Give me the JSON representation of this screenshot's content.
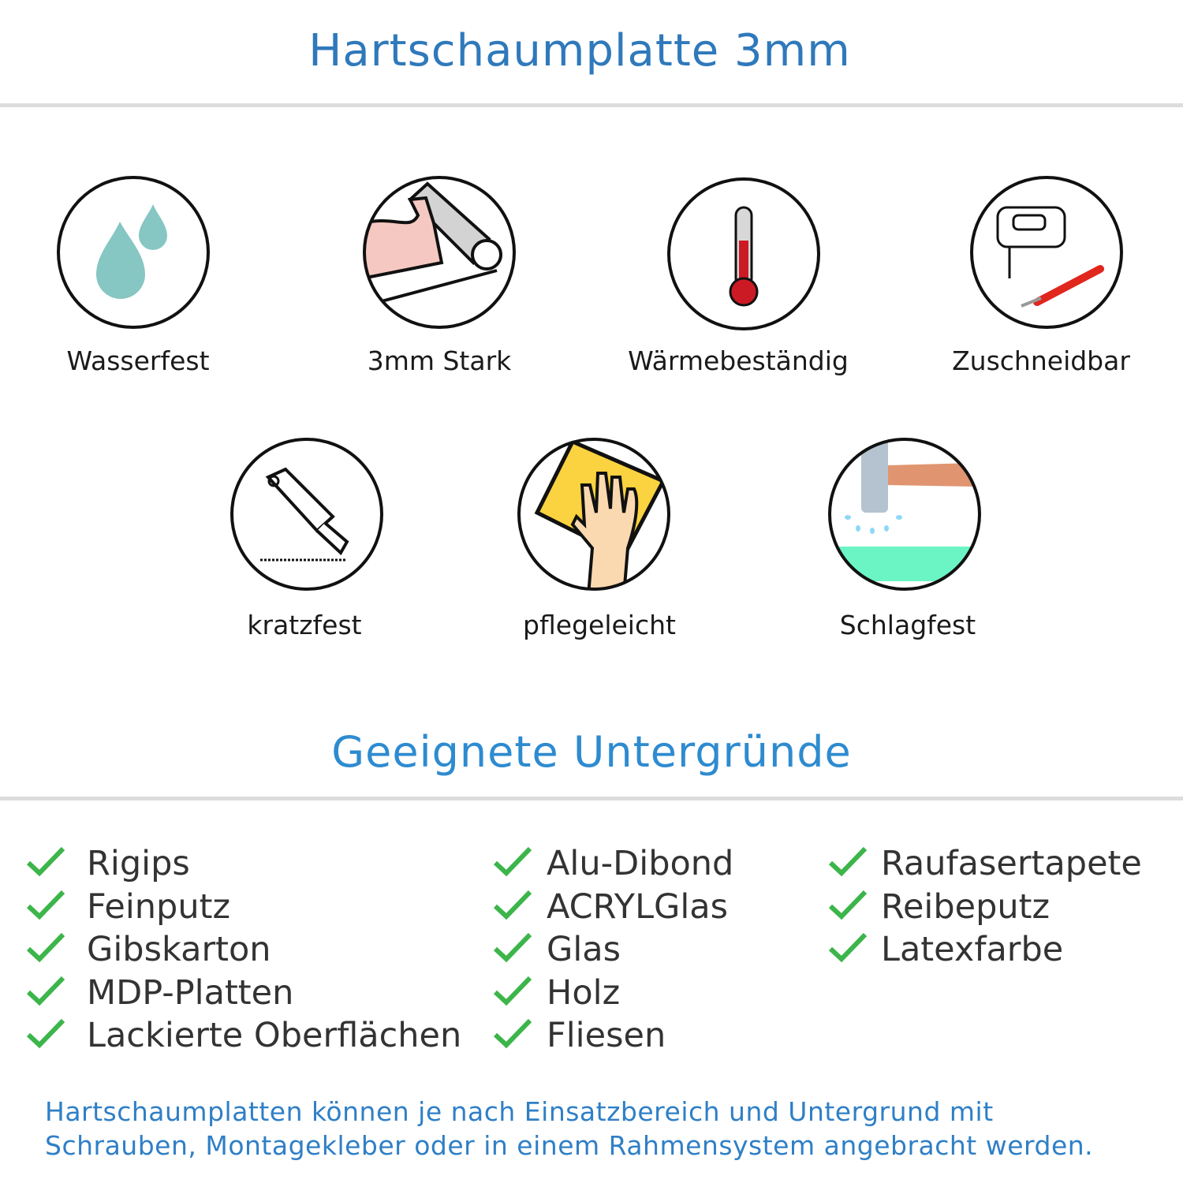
{
  "title": "Hartschaumplatte 3mm",
  "features": [
    {
      "label": "Wasserfest",
      "icon": "water-drops-icon"
    },
    {
      "label": "3mm Stark",
      "icon": "strong-arm-icon"
    },
    {
      "label": "Wärmebeständig",
      "icon": "thermometer-icon"
    },
    {
      "label": "Zuschneidbar",
      "icon": "jigsaw-knife-icon"
    },
    {
      "label": "kratzfest",
      "icon": "cutter-knife-icon"
    },
    {
      "label": "pflegeleicht",
      "icon": "cleaning-hand-icon"
    },
    {
      "label": "Schlagfest",
      "icon": "hammer-icon"
    }
  ],
  "surfaces_heading": "Geeignete Untergründe",
  "surfaces": {
    "col1": [
      "Rigips",
      "Feinputz",
      "Gibskarton",
      "MDP-Platten",
      "Lackierte Oberflächen"
    ],
    "col2": [
      "Alu-Dibond",
      "ACRYLGlas",
      "Glas",
      "Holz",
      "Fliesen"
    ],
    "col3": [
      "Raufasertapete",
      "Reibeputz",
      "Latexfarbe"
    ]
  },
  "footer": {
    "line1": "Hartschaumplatten können je nach Einsatzbereich und Untergrund mit",
    "line2": "Schrauben, Montagekleber oder in einem Rahmensystem angebracht werden."
  },
  "colors": {
    "title": "#2f79bb",
    "heading": "#2e8bd0",
    "check": "#3cb54a",
    "footer": "#2f7fc6"
  }
}
